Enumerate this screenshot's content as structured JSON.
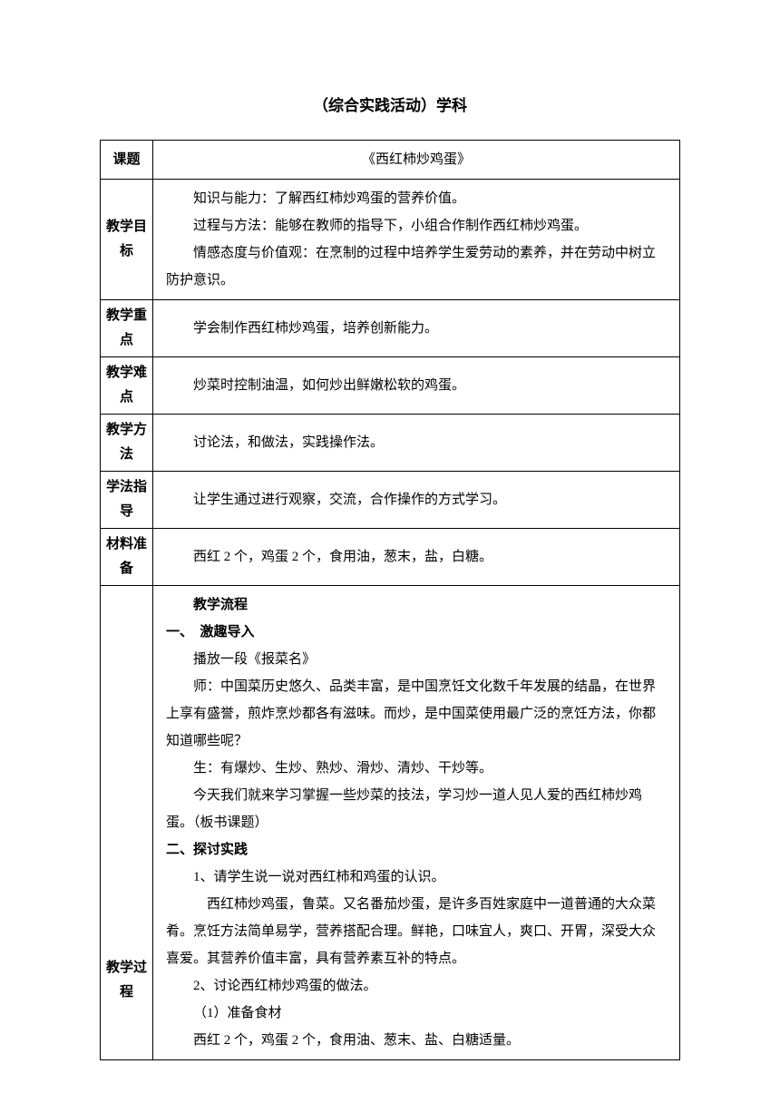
{
  "page_title": "（综合实践活动）学科",
  "rows": {
    "topic": {
      "label": "课题",
      "content": "《西红柿炒鸡蛋》"
    },
    "objectives": {
      "label": "教学目标",
      "line1": "知识与能力：了解西红柿炒鸡蛋的营养价值。",
      "line2": "过程与方法：能够在教师的指导下，小组合作制作西红柿炒鸡蛋。",
      "line3": "情感态度与价值观：在烹制的过程中培养学生爱劳动的素养，并在劳动中树立防护意识。"
    },
    "focus": {
      "label": "教学重点",
      "content": "学会制作西红柿炒鸡蛋，培养创新能力。"
    },
    "difficulty": {
      "label": "教学难点",
      "content": "炒菜时控制油温，如何炒出鲜嫩松软的鸡蛋。"
    },
    "method": {
      "label": "教学方法",
      "content": "讨论法，和做法，实践操作法。"
    },
    "guidance": {
      "label": "学法指导",
      "content": "让学生通过进行观察，交流，合作操作的方式学习。"
    },
    "materials": {
      "label": "材料准备",
      "content": "西红 2 个，鸡蛋 2 个，食用油，葱末，盐，白糖。"
    },
    "process": {
      "label": "教学过程",
      "flow_heading": "教学流程",
      "section1_heading": "一、　激趣导入",
      "s1_line1": "播放一段《报菜名》",
      "s1_line2": "师：中国菜历史悠久、品类丰富，是中国烹饪文化数千年发展的结晶，在世界上享有盛誉，煎炸烹炒都各有滋味。而炒，是中国菜使用最广泛的烹饪方法，你都知道哪些呢？",
      "s1_line3": "生：有爆炒、生炒、熟炒、滑炒、清炒、干炒等。",
      "s1_line4": "今天我们就来学习掌握一些炒菜的技法，学习炒一道人见人爱的西红柿炒鸡蛋。（板书课题）",
      "section2_heading": "二、探讨实践",
      "s2_line1": "1、请学生说一说对西红柿和鸡蛋的认识。",
      "s2_line2": "西红柿炒鸡蛋，鲁菜。又名番茄炒蛋，是许多百姓家庭中一道普通的大众菜肴。烹饪方法简单易学，营养搭配合理。鲜艳，口味宜人，爽口、开胃，深受大众喜爱。其营养价值丰富，具有营养素互补的特点。",
      "s2_line3": "2、讨论西红柿炒鸡蛋的做法。",
      "s2_line4": "（1）准备食材",
      "s2_line5": "西红 2 个，鸡蛋 2 个，食用油、葱末、盐、白糖适量。"
    }
  }
}
